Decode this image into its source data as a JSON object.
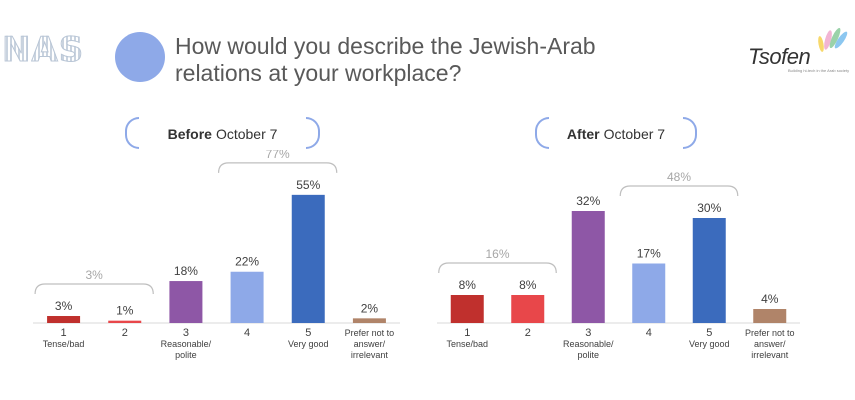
{
  "header": {
    "watermark": "NAS",
    "title": "How would you describe the Jewish-Arab relations at your workplace?",
    "brand": "Tsofen",
    "brand_tagline": "Building hi-tech in the Arab society"
  },
  "colors": {
    "accent": "#8ea9e8",
    "bar_1": "#c0302d",
    "bar_2": "#e8474a",
    "bar_3": "#8e57a6",
    "bar_4": "#8ea9e8",
    "bar_5": "#3b6bbd",
    "bar_6": "#b08469",
    "bracket": "#bfbfbf"
  },
  "panels": [
    {
      "bold": "Before",
      "rest": "October 7"
    },
    {
      "bold": "After",
      "rest": "October 7"
    }
  ],
  "chart_data": [
    {
      "type": "bar",
      "title": "Before October 7",
      "categories": [
        "1 Tense/bad",
        "2",
        "3 Reasonable/ polite",
        "4",
        "5 Very good",
        "Prefer not to answer/ irrelevant"
      ],
      "values": [
        3,
        1,
        18,
        22,
        55,
        2
      ],
      "value_labels": [
        "3%",
        "1%",
        "18%",
        "22%",
        "55%",
        "2%"
      ],
      "groups": [
        {
          "label": "3%",
          "from": 0,
          "to": 1
        },
        {
          "label": "77%",
          "from": 3,
          "to": 4
        }
      ]
    },
    {
      "type": "bar",
      "title": "After October 7",
      "categories": [
        "1 Tense/bad",
        "2",
        "3 Reasonable/ polite",
        "4",
        "5 Very good",
        "Prefer not to answer/ irrelevant"
      ],
      "values": [
        8,
        8,
        32,
        17,
        30,
        4
      ],
      "value_labels": [
        "8%",
        "8%",
        "32%",
        "17%",
        "30%",
        "4%"
      ],
      "groups": [
        {
          "label": "16%",
          "from": 0,
          "to": 1
        },
        {
          "label": "48%",
          "from": 3,
          "to": 4
        }
      ]
    }
  ],
  "category_labels": [
    [
      "1",
      "Tense/bad"
    ],
    [
      "2"
    ],
    [
      "3",
      "Reasonable/",
      "polite"
    ],
    [
      "4"
    ],
    [
      "5",
      "Very good"
    ],
    [
      "Prefer not to",
      "answer/",
      "irrelevant"
    ]
  ]
}
